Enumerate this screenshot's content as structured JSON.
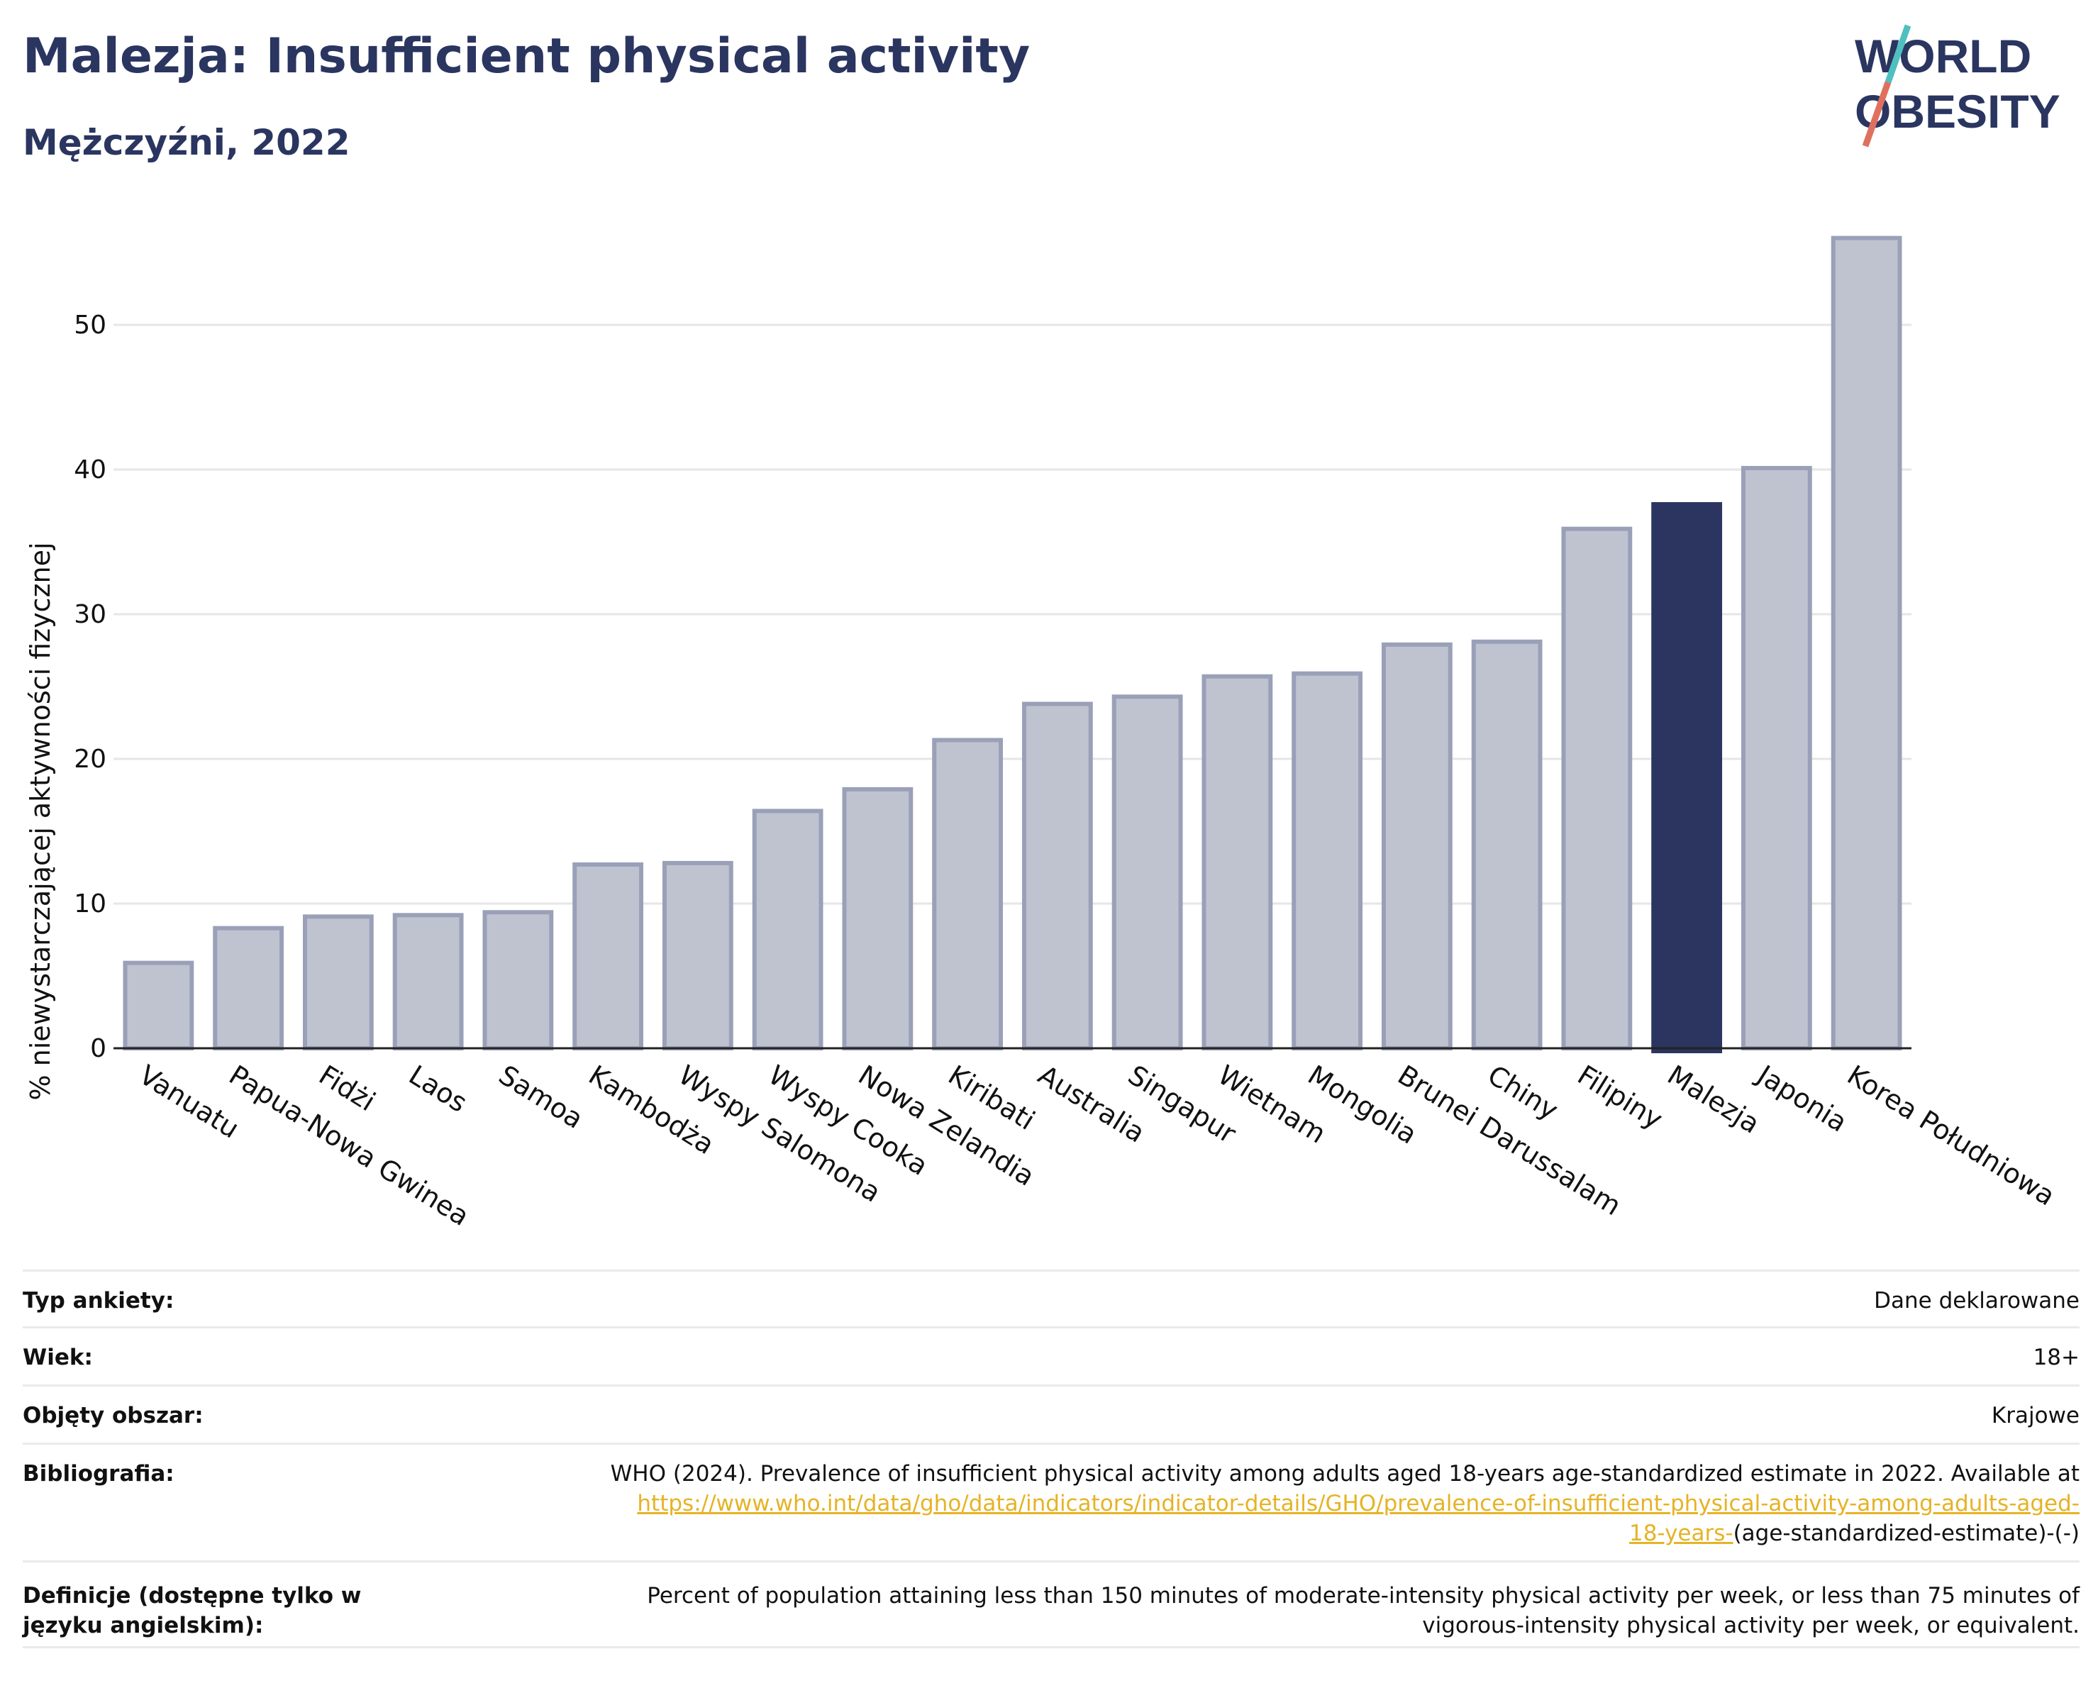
{
  "header": {
    "title": "Malezja: Insufficient physical activity",
    "subtitle": "Mężczyźni, 2022"
  },
  "logo": {
    "line1": "WORLD",
    "line2": "OBESITY"
  },
  "colors": {
    "bar": "#bfc3d0",
    "bar_border": "#9aa0b8",
    "highlight": "#2b3560",
    "text_dark": "#2a3560",
    "link": "#e6b325"
  },
  "chart_data": {
    "type": "bar",
    "categories": [
      "Vanuatu",
      "Papua-Nowa Gwinea",
      "Fidżi",
      "Laos",
      "Samoa",
      "Kambodża",
      "Wyspy Salomona",
      "Wyspy Cooka",
      "Nowa Zelandia",
      "Kiribati",
      "Australia",
      "Singapur",
      "Wietnam",
      "Mongolia",
      "Brunei Darussalam",
      "Chiny",
      "Filipiny",
      "Malezja",
      "Japonia",
      "Korea Południowa"
    ],
    "values": [
      5.9,
      8.3,
      9.1,
      9.2,
      9.4,
      12.7,
      12.8,
      16.4,
      17.9,
      21.3,
      23.8,
      24.3,
      25.7,
      25.9,
      27.9,
      28.1,
      35.9,
      37.6,
      40.1,
      56.0
    ],
    "highlight": "Malezja",
    "ylabel": "% niewystarczającej aktywności fizycznej",
    "xlabel": "",
    "ylim": [
      0,
      60
    ],
    "yticks": [
      0,
      10,
      20,
      30,
      40,
      50
    ],
    "grid": true
  },
  "info": {
    "survey_label": "Typ ankiety:",
    "survey_value": "Dane deklarowane",
    "age_label": "Wiek:",
    "age_value": "18+",
    "area_label": "Objęty obszar:",
    "area_value": "Krajowe",
    "bib_label": "Bibliografia:",
    "bib_text": "WHO (2024). Prevalence of insufficient physical activity among adults aged 18-years age-standardized estimate in 2022. Available at",
    "bib_link_1": "https://www.who.int/data/gho/data/indicators/indicator-details/GHO/prevalence-of-insufficient-physical-activity-among-adults-aged-",
    "bib_link_2": "18-years-",
    "bib_suffix": "(age-standardized-estimate)-(-)",
    "def_label": "Definicje (dostępne tylko w języku angielskim):",
    "def_text": "Percent of population attaining less than 150 minutes of moderate-intensity physical activity per week, or less than 75 minutes of vigorous-intensity physical activity per week, or equivalent."
  }
}
